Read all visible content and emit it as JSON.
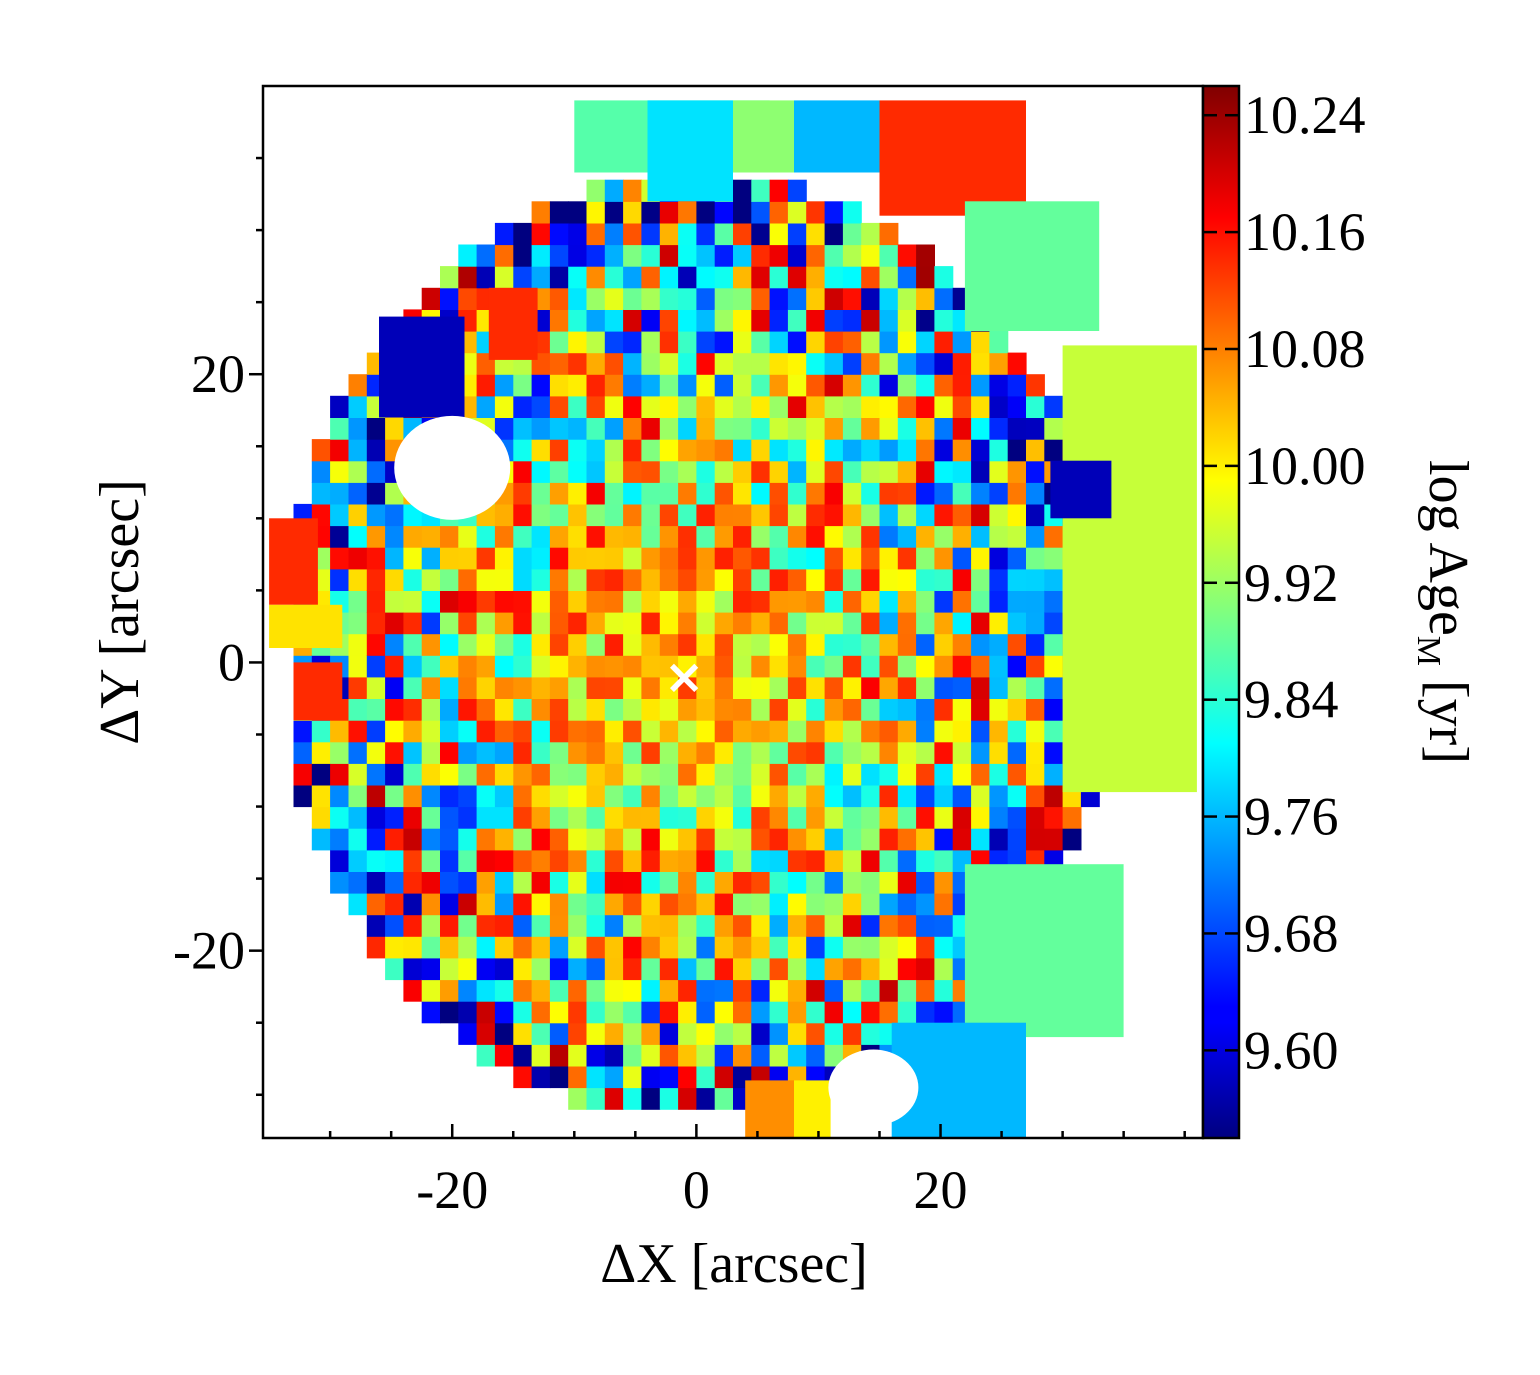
{
  "chart_data": {
    "type": "heatmap",
    "title": "",
    "xlabel": "ΔX [arcsec]",
    "ylabel": "ΔY [arcsec]",
    "xlim": [
      -35.5,
      41.5
    ],
    "ylim": [
      -33,
      40
    ],
    "x_ticks": [
      -20,
      0,
      20
    ],
    "y_ticks": [
      -20,
      0,
      20
    ],
    "x_tick_labels": [
      "-20",
      "0",
      "20"
    ],
    "y_tick_labels": [
      "-20",
      "0",
      "20"
    ],
    "colorbar": {
      "label_main": "log Age",
      "label_sub": "M",
      "label_unit": " [yr]",
      "vmin": 9.54,
      "vmax": 10.26,
      "ticks": [
        9.6,
        9.68,
        9.76,
        9.84,
        9.92,
        10.0,
        10.08,
        10.16,
        10.24
      ],
      "tick_labels": [
        "9.60",
        "9.68",
        "9.76",
        "9.84",
        "9.92",
        "10.00",
        "10.08",
        "10.16",
        "10.24"
      ],
      "colormap": "jet"
    },
    "center_marker": {
      "x": -1,
      "y": -1,
      "symbol": "×",
      "color": "#ffffff"
    },
    "trend": "log Age_M ≈ 10.06 near the centre, decreasing to ≈ 9.85 toward the outskirts, with low-S/N noisy pixels around 9.6–10.1",
    "regions": [
      {
        "name": "top-left-bin",
        "x": [
          -10,
          6
        ],
        "y": [
          34,
          39
        ],
        "value": 9.87
      },
      {
        "name": "top-cyan-bin",
        "x": [
          -4,
          3
        ],
        "y": [
          32,
          39
        ],
        "value": 9.79
      },
      {
        "name": "top-green-bin",
        "x": [
          3,
          8
        ],
        "y": [
          34,
          39
        ],
        "value": 9.91
      },
      {
        "name": "top-blue-bin",
        "x": [
          8,
          15
        ],
        "y": [
          34,
          39
        ],
        "value": 9.76
      },
      {
        "name": "top-right-red-bin",
        "x": [
          15,
          27
        ],
        "y": [
          31,
          39
        ],
        "value": 10.14
      },
      {
        "name": "right-outer-bin",
        "x": [
          30,
          41
        ],
        "y": [
          -9,
          22
        ],
        "value": 9.95
      },
      {
        "name": "right-upper-bin",
        "x": [
          22,
          33
        ],
        "y": [
          23,
          32
        ],
        "value": 9.88
      },
      {
        "name": "east-blue-bin",
        "x": [
          29,
          34
        ],
        "y": [
          10,
          14
        ],
        "value": 9.58
      },
      {
        "name": "right-lower-bin",
        "x": [
          22,
          35
        ],
        "y": [
          -26,
          -14
        ],
        "value": 9.88
      },
      {
        "name": "bottom-right-blue-bin",
        "x": [
          16,
          27
        ],
        "y": [
          -33,
          -25
        ],
        "value": 9.76
      },
      {
        "name": "bottom-orange-bin",
        "x": [
          4,
          8
        ],
        "y": [
          -33,
          -29
        ],
        "value": 10.07
      },
      {
        "name": "bottom-yellow-bin",
        "x": [
          8,
          11
        ],
        "y": [
          -33,
          -29
        ],
        "value": 10.0
      },
      {
        "name": "west-red-bin",
        "x": [
          -35,
          -31
        ],
        "y": [
          4,
          10
        ],
        "value": 10.14
      },
      {
        "name": "west-yellow-bin",
        "x": [
          -35,
          -29
        ],
        "y": [
          1,
          4
        ],
        "value": 10.01
      },
      {
        "name": "west-red-lower-bin",
        "x": [
          -33,
          -29
        ],
        "y": [
          -4,
          0
        ],
        "value": 10.14
      },
      {
        "name": "northwest-navy-bin",
        "x": [
          -26,
          -19
        ],
        "y": [
          17,
          24
        ],
        "value": 9.58
      },
      {
        "name": "northwest-red-bin",
        "x": [
          -17,
          -13
        ],
        "y": [
          21,
          26
        ],
        "value": 10.14
      }
    ]
  }
}
